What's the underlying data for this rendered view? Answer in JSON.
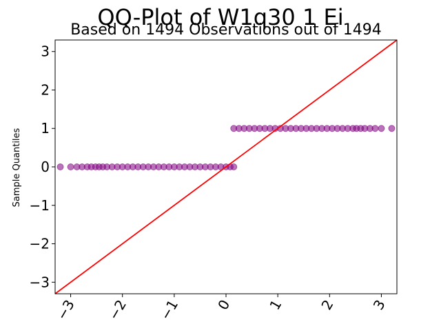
{
  "chart_data": {
    "type": "scatter",
    "title": "QQ-Plot of W1q30 1 Ei",
    "subtitle": "Based on 1494 Observations out of 1494",
    "xlabel": "",
    "ylabel": "Sample Quantiles",
    "xlim": [
      -3.3,
      3.3
    ],
    "ylim": [
      -3.3,
      3.3
    ],
    "xticks": [
      {
        "value": -3,
        "label": "−3"
      },
      {
        "value": -2,
        "label": "−2"
      },
      {
        "value": -1,
        "label": "−1"
      },
      {
        "value": 0,
        "label": "0"
      },
      {
        "value": 1,
        "label": "1"
      },
      {
        "value": 2,
        "label": "2"
      },
      {
        "value": 3,
        "label": "3"
      }
    ],
    "yticks": [
      {
        "value": -3,
        "label": "−3"
      },
      {
        "value": -2,
        "label": "−2"
      },
      {
        "value": -1,
        "label": "−1"
      },
      {
        "value": 0,
        "label": "0"
      },
      {
        "value": 1,
        "label": "1"
      },
      {
        "value": 2,
        "label": "2"
      },
      {
        "value": 3,
        "label": "3"
      }
    ],
    "grid": false,
    "series": [
      {
        "marker_color": "#800080",
        "points": [
          {
            "x": -3.2,
            "y": 0
          },
          {
            "x": -3.0,
            "y": 0
          },
          {
            "x": -2.88,
            "y": 0
          },
          {
            "x": -2.78,
            "y": 0
          },
          {
            "x": -2.68,
            "y": 0
          },
          {
            "x": -2.6,
            "y": 0
          },
          {
            "x": -2.52,
            "y": 0
          },
          {
            "x": -2.45,
            "y": 0
          },
          {
            "x": -2.38,
            "y": 0
          },
          {
            "x": -2.3,
            "y": 0
          },
          {
            "x": -2.2,
            "y": 0
          },
          {
            "x": -2.1,
            "y": 0
          },
          {
            "x": -2.0,
            "y": 0
          },
          {
            "x": -1.9,
            "y": 0
          },
          {
            "x": -1.8,
            "y": 0
          },
          {
            "x": -1.7,
            "y": 0
          },
          {
            "x": -1.6,
            "y": 0
          },
          {
            "x": -1.5,
            "y": 0
          },
          {
            "x": -1.4,
            "y": 0
          },
          {
            "x": -1.3,
            "y": 0
          },
          {
            "x": -1.2,
            "y": 0
          },
          {
            "x": -1.1,
            "y": 0
          },
          {
            "x": -1.0,
            "y": 0
          },
          {
            "x": -0.9,
            "y": 0
          },
          {
            "x": -0.8,
            "y": 0
          },
          {
            "x": -0.7,
            "y": 0
          },
          {
            "x": -0.6,
            "y": 0
          },
          {
            "x": -0.5,
            "y": 0
          },
          {
            "x": -0.4,
            "y": 0
          },
          {
            "x": -0.3,
            "y": 0
          },
          {
            "x": -0.2,
            "y": 0
          },
          {
            "x": -0.1,
            "y": 0
          },
          {
            "x": 0.0,
            "y": 0
          },
          {
            "x": 0.08,
            "y": 0
          },
          {
            "x": 0.15,
            "y": 0
          },
          {
            "x": 0.15,
            "y": 1
          },
          {
            "x": 0.25,
            "y": 1
          },
          {
            "x": 0.35,
            "y": 1
          },
          {
            "x": 0.45,
            "y": 1
          },
          {
            "x": 0.55,
            "y": 1
          },
          {
            "x": 0.65,
            "y": 1
          },
          {
            "x": 0.75,
            "y": 1
          },
          {
            "x": 0.85,
            "y": 1
          },
          {
            "x": 0.95,
            "y": 1
          },
          {
            "x": 1.05,
            "y": 1
          },
          {
            "x": 1.15,
            "y": 1
          },
          {
            "x": 1.25,
            "y": 1
          },
          {
            "x": 1.35,
            "y": 1
          },
          {
            "x": 1.45,
            "y": 1
          },
          {
            "x": 1.55,
            "y": 1
          },
          {
            "x": 1.65,
            "y": 1
          },
          {
            "x": 1.75,
            "y": 1
          },
          {
            "x": 1.85,
            "y": 1
          },
          {
            "x": 1.95,
            "y": 1
          },
          {
            "x": 2.05,
            "y": 1
          },
          {
            "x": 2.15,
            "y": 1
          },
          {
            "x": 2.25,
            "y": 1
          },
          {
            "x": 2.35,
            "y": 1
          },
          {
            "x": 2.45,
            "y": 1
          },
          {
            "x": 2.52,
            "y": 1
          },
          {
            "x": 2.6,
            "y": 1
          },
          {
            "x": 2.68,
            "y": 1
          },
          {
            "x": 2.78,
            "y": 1
          },
          {
            "x": 2.88,
            "y": 1
          },
          {
            "x": 3.0,
            "y": 1
          },
          {
            "x": 3.2,
            "y": 1
          }
        ]
      }
    ],
    "reference_line": {
      "slope": 1,
      "intercept": 0,
      "color": "#ff0000"
    }
  }
}
